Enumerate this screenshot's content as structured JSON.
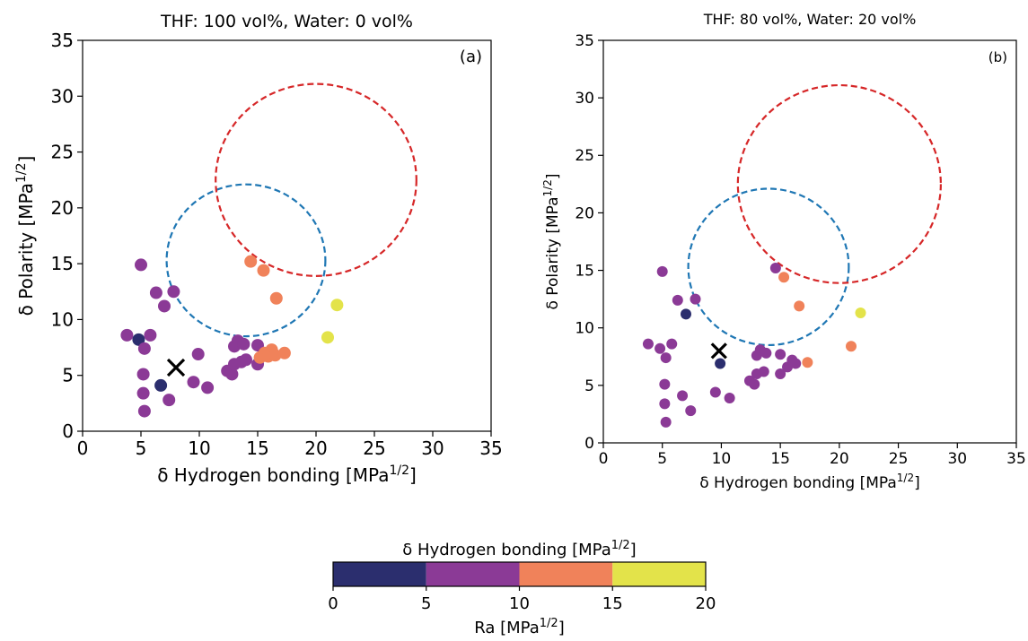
{
  "chart_data": [
    {
      "panel": "a",
      "type": "scatter",
      "title": "THF: 100 vol%, Water: 0 vol%",
      "panel_label": "(a)",
      "xlabel": "δ Hydrogen bonding [MPa",
      "ylabel": "δ Polarity [MPa",
      "unit_sup": "1/2",
      "unit_close": "]",
      "xlim": [
        0,
        35
      ],
      "ylim": [
        0,
        35
      ],
      "xticks": [
        "0",
        "5",
        "10",
        "15",
        "20",
        "25",
        "30",
        "35"
      ],
      "yticks": [
        "0",
        "5",
        "10",
        "15",
        "20",
        "25",
        "30",
        "35"
      ],
      "points": [
        {
          "x": 3.8,
          "y": 8.6,
          "ra": 7
        },
        {
          "x": 4.8,
          "y": 8.2,
          "ra": 3
        },
        {
          "x": 5.3,
          "y": 7.4,
          "ra": 7
        },
        {
          "x": 5.0,
          "y": 14.9,
          "ra": 7
        },
        {
          "x": 5.2,
          "y": 5.1,
          "ra": 7
        },
        {
          "x": 5.2,
          "y": 3.4,
          "ra": 7
        },
        {
          "x": 5.3,
          "y": 1.8,
          "ra": 7
        },
        {
          "x": 5.8,
          "y": 8.6,
          "ra": 7
        },
        {
          "x": 6.3,
          "y": 12.4,
          "ra": 7
        },
        {
          "x": 6.7,
          "y": 4.1,
          "ra": 3
        },
        {
          "x": 7.0,
          "y": 11.2,
          "ra": 7
        },
        {
          "x": 7.4,
          "y": 2.8,
          "ra": 7
        },
        {
          "x": 7.8,
          "y": 12.5,
          "ra": 7
        },
        {
          "x": 9.5,
          "y": 4.4,
          "ra": 7
        },
        {
          "x": 9.9,
          "y": 6.9,
          "ra": 7
        },
        {
          "x": 10.7,
          "y": 3.9,
          "ra": 7
        },
        {
          "x": 12.4,
          "y": 5.4,
          "ra": 7
        },
        {
          "x": 12.8,
          "y": 5.1,
          "ra": 7
        },
        {
          "x": 13.0,
          "y": 6.0,
          "ra": 7
        },
        {
          "x": 13.0,
          "y": 7.6,
          "ra": 7
        },
        {
          "x": 13.3,
          "y": 8.1,
          "ra": 7
        },
        {
          "x": 13.6,
          "y": 6.2,
          "ra": 7
        },
        {
          "x": 13.8,
          "y": 7.8,
          "ra": 7
        },
        {
          "x": 14.0,
          "y": 6.4,
          "ra": 7
        },
        {
          "x": 15.0,
          "y": 7.7,
          "ra": 7
        },
        {
          "x": 15.0,
          "y": 6.0,
          "ra": 7
        },
        {
          "x": 15.2,
          "y": 6.6,
          "ra": 12
        },
        {
          "x": 15.6,
          "y": 7.0,
          "ra": 12
        },
        {
          "x": 15.9,
          "y": 6.7,
          "ra": 12
        },
        {
          "x": 16.2,
          "y": 7.3,
          "ra": 12
        },
        {
          "x": 16.5,
          "y": 6.8,
          "ra": 12
        },
        {
          "x": 17.3,
          "y": 7.0,
          "ra": 12
        },
        {
          "x": 14.4,
          "y": 15.2,
          "ra": 12
        },
        {
          "x": 15.5,
          "y": 14.4,
          "ra": 12
        },
        {
          "x": 16.6,
          "y": 11.9,
          "ra": 12
        },
        {
          "x": 21.0,
          "y": 8.4,
          "ra": 17
        },
        {
          "x": 21.8,
          "y": 11.3,
          "ra": 17
        }
      ],
      "marker_x": {
        "x": 8.0,
        "y": 5.7
      },
      "circles": [
        {
          "cx": 14.0,
          "cy": 15.3,
          "r": 6.8,
          "color": "#1f77b4"
        },
        {
          "cx": 20.0,
          "cy": 22.5,
          "r": 8.6,
          "color": "#d62728"
        }
      ]
    },
    {
      "panel": "b",
      "type": "scatter",
      "title": "THF: 80 vol%, Water: 20 vol%",
      "panel_label": "(b)",
      "xlabel": "δ Hydrogen bonding [MPa",
      "ylabel": "δ Polarity [MPa",
      "unit_sup": "1/2",
      "unit_close": "]",
      "xlim": [
        0,
        35
      ],
      "ylim": [
        0,
        35
      ],
      "xticks": [
        "0",
        "5",
        "10",
        "15",
        "20",
        "25",
        "30",
        "35"
      ],
      "yticks": [
        "0",
        "5",
        "10",
        "15",
        "20",
        "25",
        "30",
        "35"
      ],
      "points": [
        {
          "x": 3.8,
          "y": 8.6,
          "ra": 7
        },
        {
          "x": 4.8,
          "y": 8.2,
          "ra": 7
        },
        {
          "x": 5.3,
          "y": 7.4,
          "ra": 7
        },
        {
          "x": 5.0,
          "y": 14.9,
          "ra": 7
        },
        {
          "x": 5.2,
          "y": 5.1,
          "ra": 7
        },
        {
          "x": 5.2,
          "y": 3.4,
          "ra": 7
        },
        {
          "x": 5.3,
          "y": 1.8,
          "ra": 7
        },
        {
          "x": 5.8,
          "y": 8.6,
          "ra": 7
        },
        {
          "x": 6.3,
          "y": 12.4,
          "ra": 7
        },
        {
          "x": 6.7,
          "y": 4.1,
          "ra": 7
        },
        {
          "x": 7.0,
          "y": 11.2,
          "ra": 3
        },
        {
          "x": 7.4,
          "y": 2.8,
          "ra": 7
        },
        {
          "x": 7.8,
          "y": 12.5,
          "ra": 7
        },
        {
          "x": 9.5,
          "y": 4.4,
          "ra": 7
        },
        {
          "x": 9.9,
          "y": 6.9,
          "ra": 3
        },
        {
          "x": 10.7,
          "y": 3.9,
          "ra": 7
        },
        {
          "x": 12.4,
          "y": 5.4,
          "ra": 7
        },
        {
          "x": 12.8,
          "y": 5.1,
          "ra": 7
        },
        {
          "x": 13.0,
          "y": 6.0,
          "ra": 7
        },
        {
          "x": 13.0,
          "y": 7.6,
          "ra": 7
        },
        {
          "x": 13.3,
          "y": 8.1,
          "ra": 7
        },
        {
          "x": 13.6,
          "y": 6.2,
          "ra": 7
        },
        {
          "x": 13.8,
          "y": 7.8,
          "ra": 7
        },
        {
          "x": 15.0,
          "y": 7.7,
          "ra": 7
        },
        {
          "x": 15.0,
          "y": 6.0,
          "ra": 7
        },
        {
          "x": 15.6,
          "y": 6.6,
          "ra": 7
        },
        {
          "x": 16.0,
          "y": 7.2,
          "ra": 7
        },
        {
          "x": 16.3,
          "y": 6.9,
          "ra": 7
        },
        {
          "x": 14.6,
          "y": 15.2,
          "ra": 7
        },
        {
          "x": 15.3,
          "y": 14.4,
          "ra": 12
        },
        {
          "x": 16.6,
          "y": 11.9,
          "ra": 12
        },
        {
          "x": 17.3,
          "y": 7.0,
          "ra": 12
        },
        {
          "x": 21.0,
          "y": 8.4,
          "ra": 12
        },
        {
          "x": 21.8,
          "y": 11.3,
          "ra": 17
        }
      ],
      "marker_x": {
        "x": 9.8,
        "y": 8.0
      },
      "circles": [
        {
          "cx": 14.0,
          "cy": 15.3,
          "r": 6.8,
          "color": "#1f77b4"
        },
        {
          "cx": 20.0,
          "cy": 22.5,
          "r": 8.6,
          "color": "#d62728"
        }
      ]
    }
  ],
  "colorbar": {
    "title": "δ Hydrogen bonding [MPa",
    "label": "Ra [MPa",
    "unit_sup": "1/2",
    "unit_close": "]",
    "range": [
      0,
      20
    ],
    "bins": [
      {
        "from": 0,
        "to": 5,
        "color": "#2b2e6e"
      },
      {
        "from": 5,
        "to": 10,
        "color": "#8b3a96"
      },
      {
        "from": 10,
        "to": 15,
        "color": "#f0825a"
      },
      {
        "from": 15,
        "to": 20,
        "color": "#e3e34a"
      }
    ],
    "ticks": [
      "0",
      "5",
      "10",
      "15",
      "20"
    ]
  },
  "colors": {
    "dark_navy": "#2b2e6e",
    "purple": "#8b3a96",
    "orange": "#f0825a",
    "yellow": "#e3e34a",
    "circle_blue": "#1f77b4",
    "circle_red": "#d62728"
  }
}
